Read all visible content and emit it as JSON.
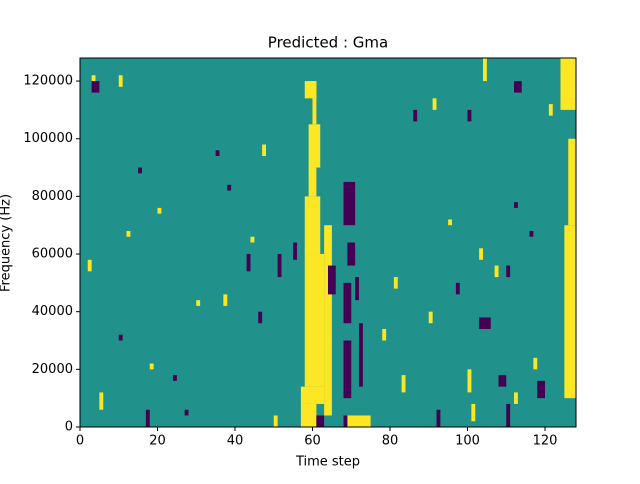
{
  "chart_data": {
    "type": "heatmap",
    "title": "Predicted : Gma",
    "x_label": "Time step",
    "y_label": "Frequency (Hz)",
    "xlim": [
      0,
      128
    ],
    "ylim": [
      0,
      128000
    ],
    "xticks": [
      0,
      20,
      40,
      60,
      80,
      100,
      120
    ],
    "yticks": [
      0,
      20000,
      40000,
      60000,
      80000,
      100000,
      120000
    ],
    "colors": [
      "#440154",
      "#21918c",
      "#fde725"
    ],
    "background_value": 1,
    "cells": [
      [
        57,
        61,
        0,
        8000,
        2
      ],
      [
        61,
        63,
        0,
        4000,
        0
      ],
      [
        57,
        63,
        8000,
        14000,
        2
      ],
      [
        58,
        63,
        14000,
        60000,
        2
      ],
      [
        58,
        62,
        60000,
        80000,
        2
      ],
      [
        59,
        61,
        80000,
        90000,
        2
      ],
      [
        59,
        62,
        90000,
        105000,
        2
      ],
      [
        60,
        61,
        105000,
        120000,
        2
      ],
      [
        58,
        61,
        114000,
        120000,
        2
      ],
      [
        63,
        65,
        4000,
        70000,
        2
      ],
      [
        68,
        70,
        10000,
        30000,
        0
      ],
      [
        68,
        70,
        36000,
        50000,
        0
      ],
      [
        68,
        71,
        70000,
        85000,
        0
      ],
      [
        69,
        71,
        56000,
        64000,
        0
      ],
      [
        64,
        66,
        46000,
        56000,
        0
      ],
      [
        72,
        73,
        14000,
        36000,
        0
      ],
      [
        71,
        72,
        44000,
        52000,
        0
      ],
      [
        69,
        75,
        0,
        4000,
        2
      ],
      [
        68,
        69,
        0,
        4000,
        0
      ],
      [
        125,
        128,
        10000,
        70000,
        2
      ],
      [
        126,
        128,
        70000,
        100000,
        2
      ],
      [
        124,
        128,
        110000,
        128000,
        2
      ],
      [
        3,
        5,
        116000,
        120000,
        0
      ],
      [
        15,
        16,
        88000,
        90000,
        0
      ],
      [
        17,
        18,
        0,
        6000,
        0
      ],
      [
        27,
        28,
        4000,
        6000,
        0
      ],
      [
        35,
        36,
        94000,
        96000,
        0
      ],
      [
        38,
        39,
        82000,
        84000,
        0
      ],
      [
        43,
        44,
        54000,
        60000,
        0
      ],
      [
        46,
        47,
        36000,
        40000,
        0
      ],
      [
        51,
        52,
        52000,
        60000,
        0
      ],
      [
        55,
        56,
        58000,
        64000,
        0
      ],
      [
        92,
        93,
        0,
        6000,
        0
      ],
      [
        103,
        104,
        34000,
        38000,
        0
      ],
      [
        104,
        106,
        34000,
        38000,
        0
      ],
      [
        108,
        110,
        14000,
        18000,
        0
      ],
      [
        110,
        111,
        0,
        8000,
        0
      ],
      [
        110,
        111,
        52000,
        56000,
        0
      ],
      [
        112,
        114,
        116000,
        120000,
        0
      ],
      [
        112,
        113,
        76000,
        78000,
        0
      ],
      [
        116,
        117,
        66000,
        68000,
        0
      ],
      [
        118,
        120,
        10000,
        16000,
        0
      ],
      [
        97,
        98,
        46000,
        50000,
        0
      ],
      [
        86,
        87,
        106000,
        110000,
        0
      ],
      [
        100,
        101,
        106000,
        110000,
        0
      ],
      [
        24,
        25,
        16000,
        18000,
        0
      ],
      [
        10,
        11,
        30000,
        32000,
        0
      ],
      [
        3,
        4,
        120000,
        122000,
        2
      ],
      [
        5,
        6,
        6000,
        12000,
        2
      ],
      [
        10,
        11,
        118000,
        122000,
        2
      ],
      [
        2,
        3,
        54000,
        58000,
        2
      ],
      [
        12,
        13,
        66000,
        68000,
        2
      ],
      [
        18,
        19,
        20000,
        22000,
        2
      ],
      [
        20,
        21,
        74000,
        76000,
        2
      ],
      [
        30,
        31,
        42000,
        44000,
        2
      ],
      [
        37,
        38,
        42000,
        46000,
        2
      ],
      [
        44,
        45,
        64000,
        66000,
        2
      ],
      [
        47,
        48,
        94000,
        98000,
        2
      ],
      [
        50,
        51,
        0,
        4000,
        2
      ],
      [
        78,
        79,
        30000,
        34000,
        2
      ],
      [
        81,
        82,
        48000,
        52000,
        2
      ],
      [
        83,
        84,
        12000,
        18000,
        2
      ],
      [
        90,
        91,
        36000,
        40000,
        2
      ],
      [
        91,
        92,
        110000,
        114000,
        2
      ],
      [
        100,
        101,
        12000,
        20000,
        2
      ],
      [
        101,
        102,
        2000,
        8000,
        2
      ],
      [
        104,
        105,
        120000,
        128000,
        2
      ],
      [
        107,
        108,
        52000,
        56000,
        2
      ],
      [
        112,
        113,
        8000,
        12000,
        2
      ],
      [
        117,
        118,
        20000,
        24000,
        2
      ],
      [
        121,
        122,
        108000,
        112000,
        2
      ],
      [
        103,
        104,
        58000,
        62000,
        2
      ],
      [
        95,
        96,
        70000,
        72000,
        2
      ]
    ]
  }
}
